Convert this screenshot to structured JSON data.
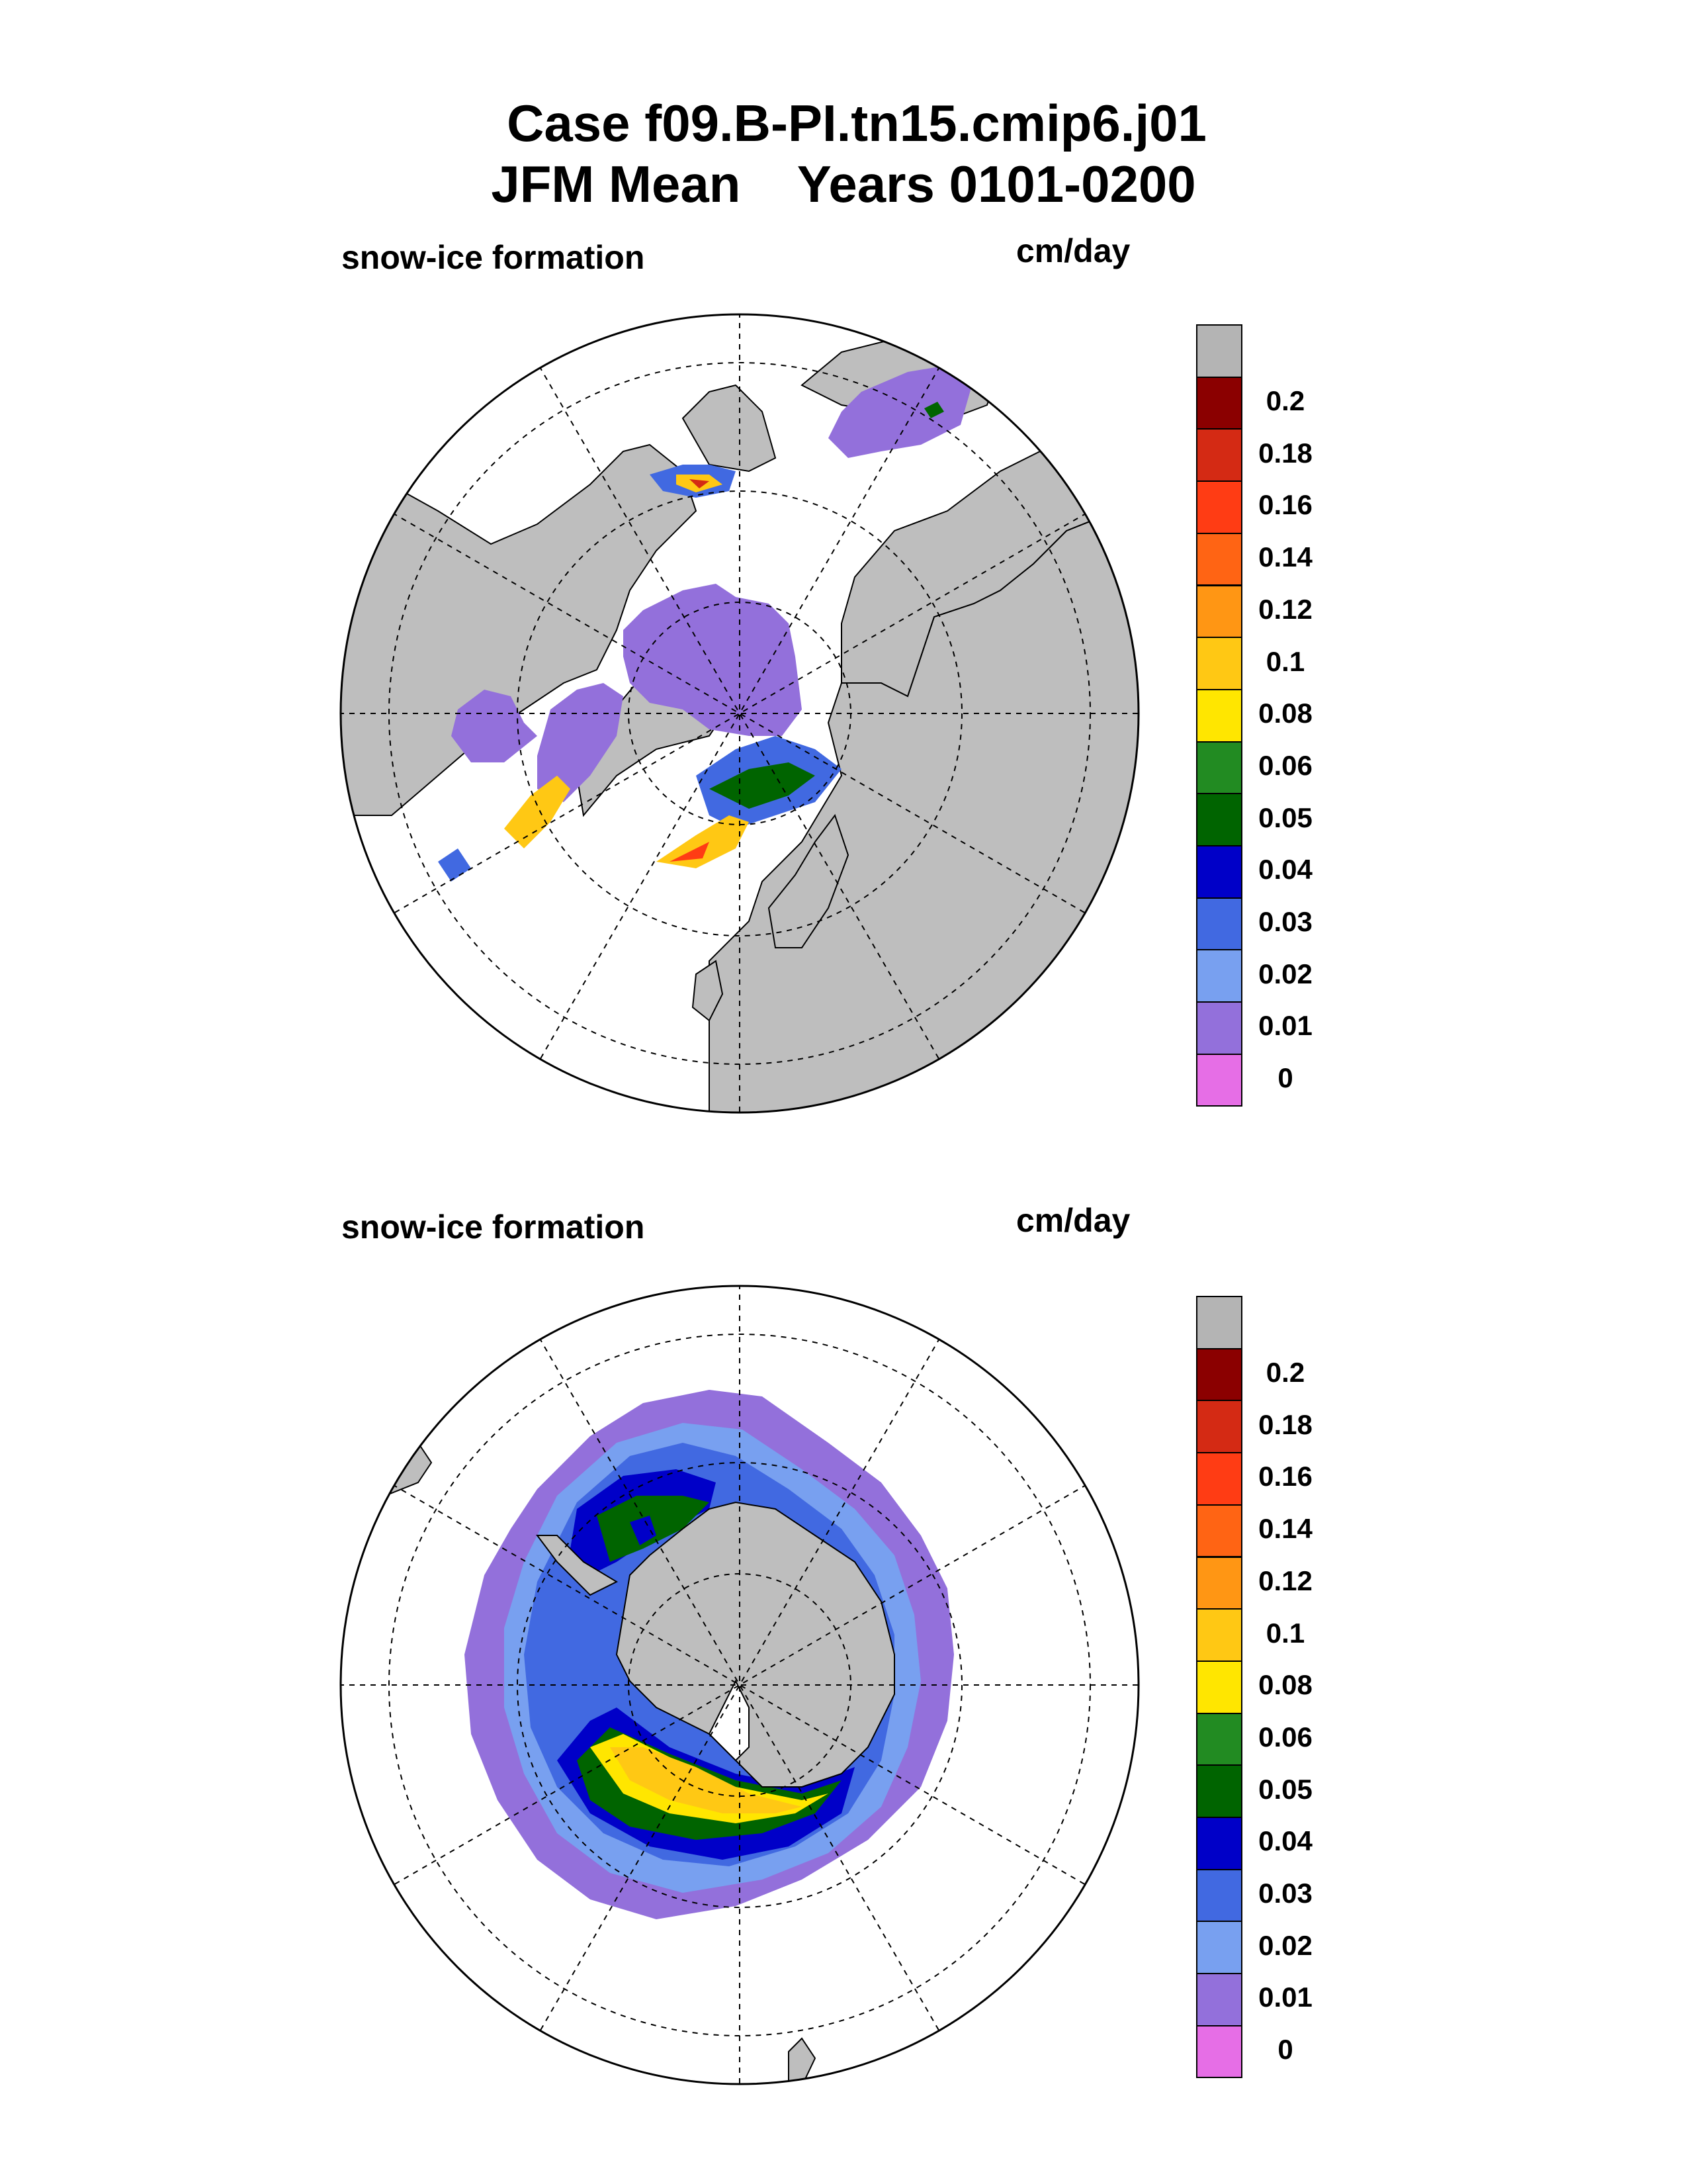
{
  "title": {
    "line1": "Case f09.B-PI.tn15.cmip6.j01",
    "line2": "JFM Mean    Years 0101-0200"
  },
  "panels": [
    {
      "id": "north",
      "label_left": "snow-ice formation",
      "label_right": "cm/day"
    },
    {
      "id": "south",
      "label_left": "snow-ice formation",
      "label_right": "cm/day"
    }
  ],
  "colorbar": {
    "levels": [
      "0.2",
      "0.18",
      "0.16",
      "0.14",
      "0.12",
      "0.1",
      "0.08",
      "0.06",
      "0.05",
      "0.04",
      "0.03",
      "0.02",
      "0.01",
      "0"
    ],
    "colors": [
      "#b4b4b4",
      "#8b0000",
      "#d42a14",
      "#ff3c14",
      "#ff6414",
      "#ff9614",
      "#ffc814",
      "#ffe600",
      "#228b22",
      "#006400",
      "#0000c8",
      "#4169e1",
      "#78a0f0",
      "#9370db",
      "#e66ee6"
    ]
  },
  "colors": {
    "land": "#bebebe",
    "ocean": "#ffffff",
    "ice_zero": "#9370db"
  }
}
